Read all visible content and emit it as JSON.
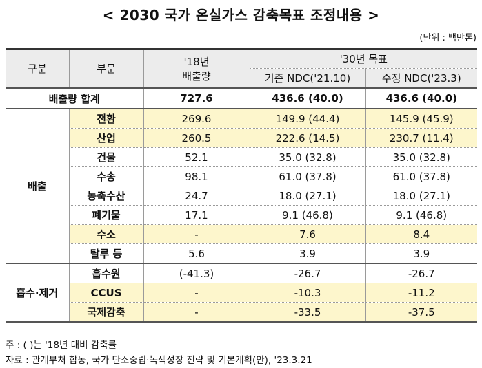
{
  "title": "< 2030 국가 온실가스 감축목표 조정내용 >",
  "unit": "(단위 : 백만톤)",
  "headers": {
    "category": "구분",
    "sector": "부문",
    "emissions_2018_line1": "'18년",
    "emissions_2018_line2": "배출량",
    "target_2030": "'30년 목표",
    "existing_ndc": "기존 NDC('21.10)",
    "revised_ndc": "수정 NDC('23.3)"
  },
  "total": {
    "label": "배출량 합계",
    "y2018": "727.6",
    "existing": "436.6 (40.0)",
    "revised": "436.6 (40.0)"
  },
  "emission_group": {
    "label": "배출",
    "rows": [
      {
        "sector": "전환",
        "y2018": "269.6",
        "existing": "149.9 (44.4)",
        "revised": "145.9 (45.9)",
        "highlight": true
      },
      {
        "sector": "산업",
        "y2018": "260.5",
        "existing": "222.6 (14.5)",
        "revised": "230.7 (11.4)",
        "highlight": true
      },
      {
        "sector": "건물",
        "y2018": "52.1",
        "existing": "35.0 (32.8)",
        "revised": "35.0 (32.8)",
        "highlight": false
      },
      {
        "sector": "수송",
        "y2018": "98.1",
        "existing": "61.0 (37.8)",
        "revised": "61.0 (37.8)",
        "highlight": false
      },
      {
        "sector": "농축수산",
        "y2018": "24.7",
        "existing": "18.0 (27.1)",
        "revised": "18.0 (27.1)",
        "highlight": false
      },
      {
        "sector": "폐기물",
        "y2018": "17.1",
        "existing": "9.1 (46.8)",
        "revised": "9.1 (46.8)",
        "highlight": false
      },
      {
        "sector": "수소",
        "y2018": "-",
        "existing": "7.6",
        "revised": "8.4",
        "highlight": true
      },
      {
        "sector": "탈루 등",
        "y2018": "5.6",
        "existing": "3.9",
        "revised": "3.9",
        "highlight": false
      }
    ]
  },
  "absorption_group": {
    "label": "흡수·제거",
    "rows": [
      {
        "sector": "흡수원",
        "y2018": "(-41.3)",
        "existing": "-26.7",
        "revised": "-26.7",
        "highlight": false
      },
      {
        "sector": "CCUS",
        "y2018": "-",
        "existing": "-10.3",
        "revised": "-11.2",
        "highlight": true
      },
      {
        "sector": "국제감축",
        "y2018": "-",
        "existing": "-33.5",
        "revised": "-37.5",
        "highlight": true
      }
    ]
  },
  "footnotes": {
    "note": "주 : ( )는 '18년 대비 감축률",
    "source": "자료 : 관계부처 합동, 국가 탄소중립·녹색성장 전략 및 기본계획(안), '23.3.21"
  },
  "colors": {
    "header_bg": "#ececec",
    "highlight_bg": "#fdf6cc"
  }
}
